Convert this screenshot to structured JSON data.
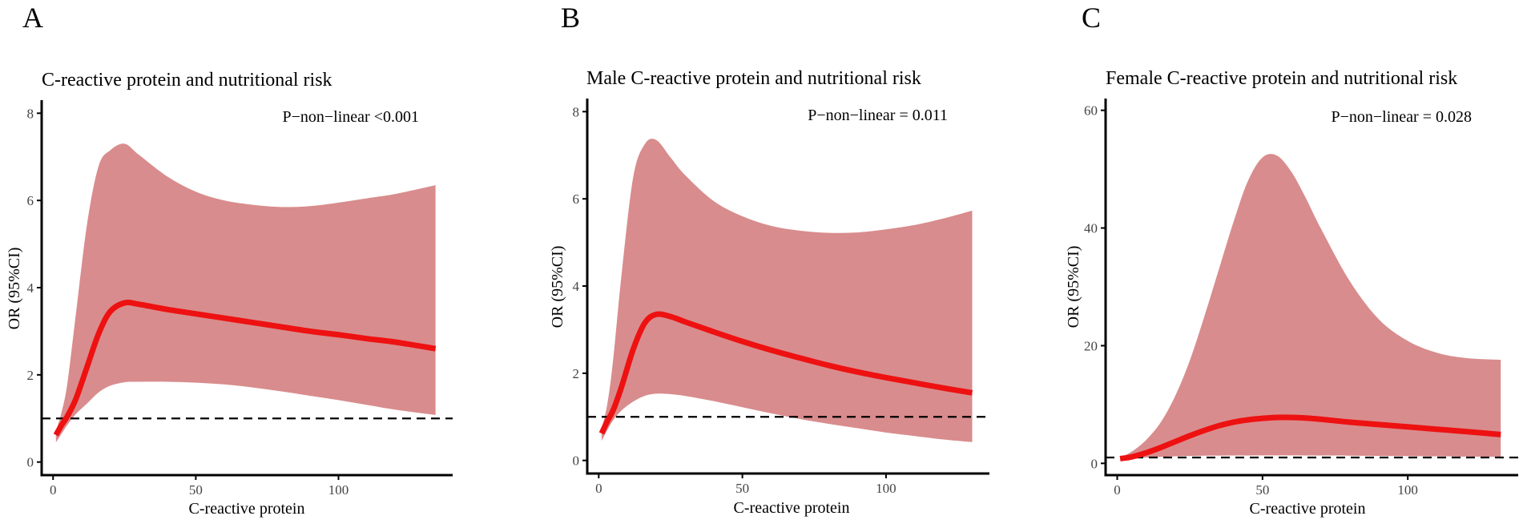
{
  "colors": {
    "ci_band": "#d98c8d",
    "curve": "#ee1111",
    "reference_line": "#000000",
    "axis": "#000000"
  },
  "chart_data": [
    {
      "panel_label": "A",
      "type": "line",
      "title": "C-reactive protein and nutritional risk",
      "annotation": "P−non−linear <0.001",
      "xlabel": "C-reactive protein",
      "ylabel": "OR (95%CI)",
      "xlim": [
        -4,
        140
      ],
      "ylim": [
        -0.3,
        8.3
      ],
      "xticks": [
        0,
        50,
        100
      ],
      "yticks": [
        0,
        2,
        4,
        6,
        8
      ],
      "reference_y": 1,
      "x": [
        1,
        3,
        5,
        8,
        12,
        16,
        20,
        25,
        30,
        40,
        50,
        60,
        70,
        80,
        90,
        100,
        110,
        120,
        134
      ],
      "y": [
        0.62,
        0.85,
        1.05,
        1.45,
        2.2,
        2.95,
        3.45,
        3.65,
        3.62,
        3.5,
        3.4,
        3.3,
        3.2,
        3.1,
        3.0,
        2.92,
        2.83,
        2.75,
        2.6
      ],
      "upper": [
        0.7,
        1.15,
        1.8,
        3.4,
        5.5,
        6.8,
        7.15,
        7.3,
        7.05,
        6.55,
        6.2,
        6.0,
        5.9,
        5.85,
        5.87,
        5.95,
        6.05,
        6.15,
        6.35
      ],
      "lower": [
        0.45,
        0.65,
        0.85,
        1.1,
        1.35,
        1.6,
        1.75,
        1.83,
        1.84,
        1.84,
        1.82,
        1.78,
        1.71,
        1.62,
        1.52,
        1.42,
        1.31,
        1.2,
        1.08
      ]
    },
    {
      "panel_label": "B",
      "type": "line",
      "title": "Male C-reactive protein and nutritional risk",
      "annotation": "P−non−linear = 0.011",
      "xlabel": "C-reactive protein",
      "ylabel": "OR (95%CI)",
      "xlim": [
        -4,
        136
      ],
      "ylim": [
        -0.3,
        8.3
      ],
      "xticks": [
        0,
        50,
        100
      ],
      "yticks": [
        0,
        2,
        4,
        6,
        8
      ],
      "reference_y": 1,
      "x": [
        1,
        3,
        5,
        8,
        12,
        16,
        20,
        25,
        30,
        40,
        50,
        60,
        70,
        80,
        90,
        100,
        110,
        120,
        130
      ],
      "y": [
        0.62,
        0.9,
        1.15,
        1.7,
        2.55,
        3.15,
        3.35,
        3.3,
        3.18,
        2.95,
        2.73,
        2.53,
        2.35,
        2.18,
        2.03,
        1.9,
        1.78,
        1.66,
        1.55
      ],
      "upper": [
        0.72,
        1.3,
        2.3,
        4.3,
        6.5,
        7.25,
        7.35,
        6.95,
        6.55,
        5.95,
        5.6,
        5.38,
        5.27,
        5.22,
        5.23,
        5.3,
        5.4,
        5.55,
        5.73
      ],
      "lower": [
        0.45,
        0.7,
        0.92,
        1.15,
        1.35,
        1.48,
        1.53,
        1.52,
        1.48,
        1.36,
        1.22,
        1.08,
        0.95,
        0.84,
        0.74,
        0.64,
        0.56,
        0.48,
        0.42
      ]
    },
    {
      "panel_label": "C",
      "type": "line",
      "title": "Female C-reactive protein and nutritional risk",
      "annotation": "P−non−linear = 0.028",
      "xlabel": "C-reactive protein",
      "ylabel": "OR (95%CI)",
      "xlim": [
        -4,
        138
      ],
      "ylim": [
        -2,
        62
      ],
      "xticks": [
        0,
        50,
        100
      ],
      "yticks": [
        0,
        20,
        40,
        60
      ],
      "reference_y": 1,
      "x": [
        1,
        5,
        10,
        15,
        20,
        25,
        30,
        35,
        40,
        45,
        50,
        55,
        60,
        65,
        70,
        80,
        90,
        100,
        110,
        120,
        132
      ],
      "y": [
        0.8,
        1.1,
        1.8,
        2.7,
        3.7,
        4.7,
        5.6,
        6.4,
        7.0,
        7.4,
        7.65,
        7.8,
        7.8,
        7.7,
        7.5,
        7.0,
        6.6,
        6.2,
        5.8,
        5.4,
        4.9
      ],
      "upper": [
        1.0,
        2.0,
        4.0,
        7.0,
        11.5,
        17.5,
        25.0,
        33.0,
        41.0,
        48.0,
        52.0,
        52.3,
        49.5,
        45.0,
        40.0,
        31.0,
        24.5,
        20.8,
        18.8,
        17.9,
        17.6
      ],
      "lower": [
        0.6,
        0.8,
        1.0,
        1.1,
        1.2,
        1.25,
        1.3,
        1.32,
        1.33,
        1.34,
        1.35,
        1.35,
        1.35,
        1.34,
        1.33,
        1.3,
        1.27,
        1.24,
        1.2,
        1.15,
        1.1
      ]
    }
  ]
}
